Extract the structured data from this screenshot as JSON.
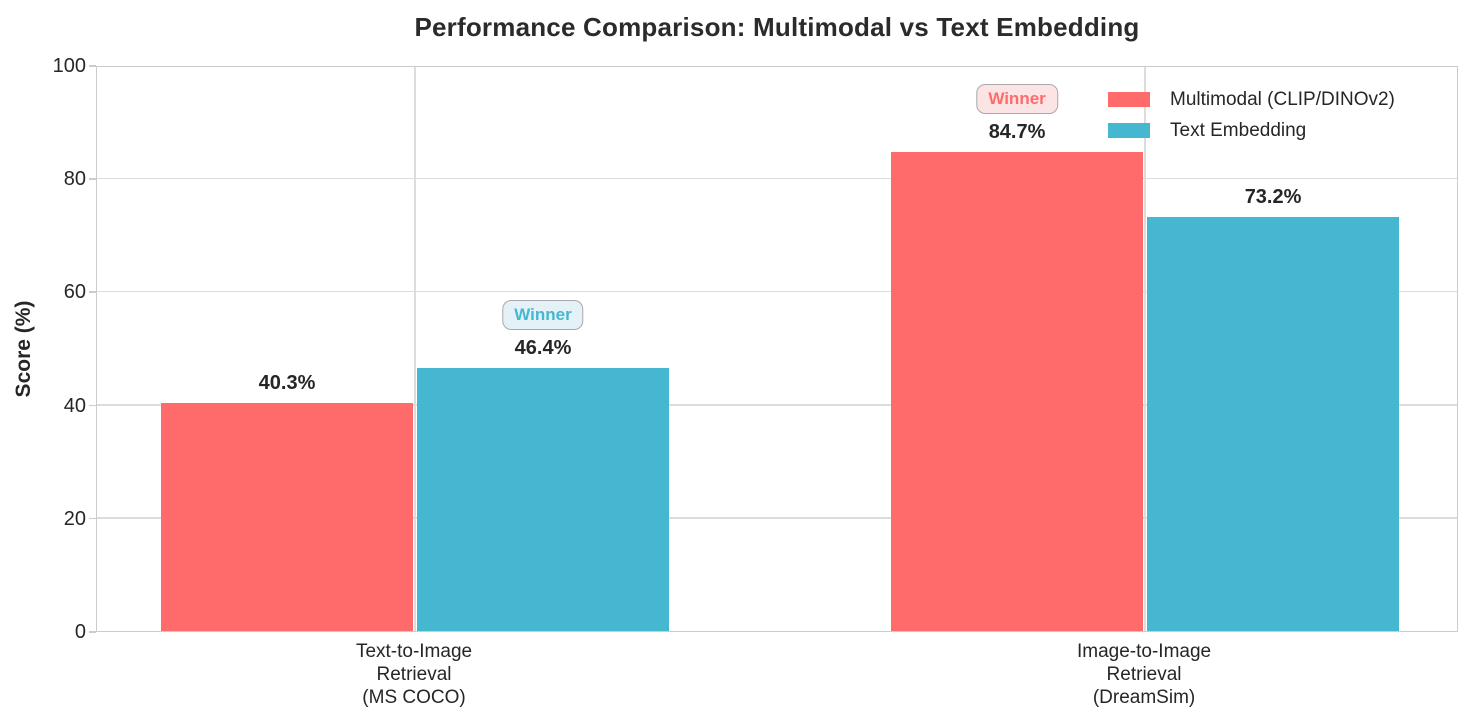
{
  "chart_data": {
    "type": "bar",
    "title": "Performance Comparison: Multimodal vs Text Embedding",
    "xlabel": "",
    "ylabel": "Score (%)",
    "ylim": [
      0,
      100
    ],
    "yticks": [
      0,
      20,
      40,
      60,
      80,
      100
    ],
    "grid": true,
    "legend_position": "upper right",
    "categories": [
      "Text-to-Image\nRetrieval\n(MS COCO)",
      "Image-to-Image\nRetrieval\n(DreamSim)"
    ],
    "series": [
      {
        "key": "multimodal",
        "name": "Multimodal (CLIP/DINOv2)",
        "color": "#FF6B6B",
        "badge_bg": "#FCE4E4",
        "values": [
          40.3,
          84.7
        ],
        "value_labels": [
          "40.3%",
          "84.7%"
        ]
      },
      {
        "key": "text-embedding",
        "name": "Text Embedding",
        "color": "#45B7D1",
        "badge_bg": "#E4F2F7",
        "values": [
          46.4,
          73.2
        ],
        "value_labels": [
          "46.4%",
          "73.2%"
        ]
      }
    ],
    "winners": [
      {
        "category": 0,
        "series": 1,
        "label": "Winner"
      },
      {
        "category": 1,
        "series": 0,
        "label": "Winner"
      }
    ]
  },
  "colors": {
    "title_text": "#2b2b2b",
    "axis_text": "#262626",
    "gridline": "#dcdcdc",
    "spine": "#cccccc",
    "badge_border": "#a9a9a9",
    "background": "#ffffff"
  }
}
